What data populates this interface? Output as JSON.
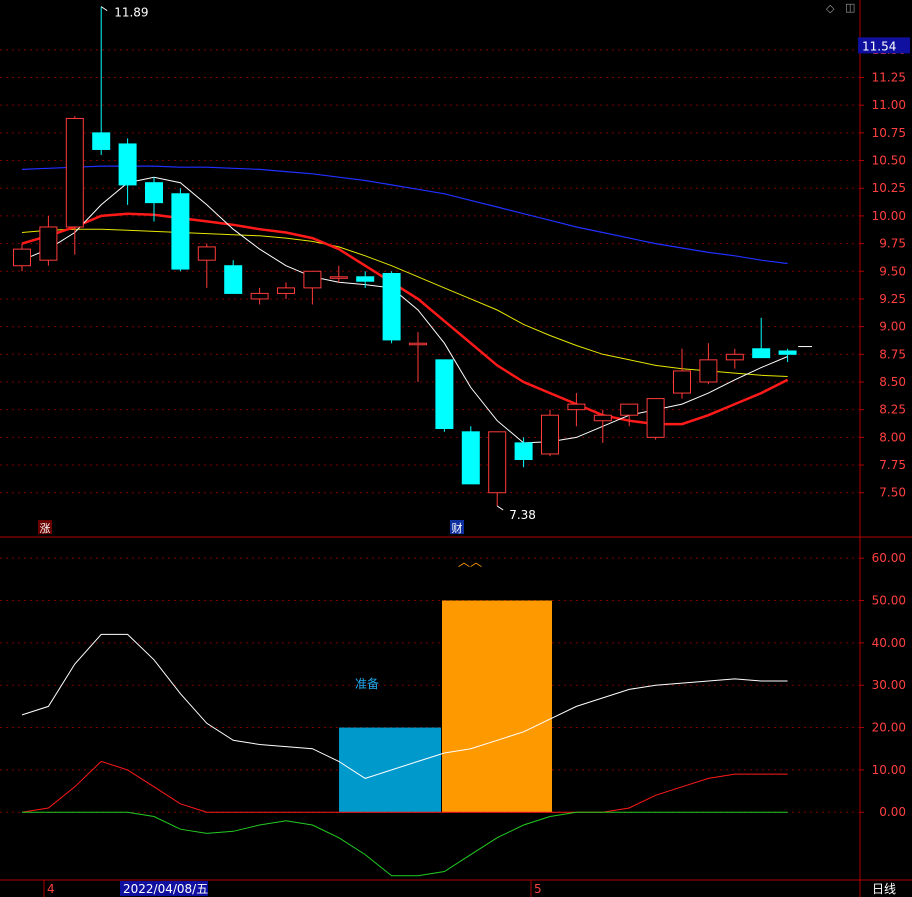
{
  "toolbar": {
    "diamond_icon": "◇",
    "panel_icon": "◫"
  },
  "price_panel": {
    "current_price_badge": "11.54",
    "y_ticks": [
      "11.50",
      "11.25",
      "11.00",
      "10.75",
      "10.50",
      "10.25",
      "10.00",
      "9.75",
      "9.50",
      "9.25",
      "9.00",
      "8.75",
      "8.50",
      "8.25",
      "8.00",
      "7.75",
      "7.50"
    ],
    "high_label": "11.89",
    "low_label": "7.38",
    "marker_left": "涨",
    "marker_fin": "财"
  },
  "indicator_panel": {
    "y_ticks": [
      "60.00",
      "50.00",
      "40.00",
      "30.00",
      "20.00",
      "10.00",
      "0.00"
    ],
    "label_prepare": "准备",
    "peak_glyph": "︿︿"
  },
  "x_axis": {
    "labels": [
      "4",
      "2022/04/08/五",
      "5"
    ],
    "period_label": "日线"
  },
  "colors": {
    "background": "#000000",
    "grid": "#7a0000",
    "frame": "#b00000",
    "up_candle": "#ff3b3b",
    "down_candle": "#00ffff",
    "ma_white": "#ffffff",
    "ma_red": "#ff1a1a",
    "ma_yellow": "#e6e600",
    "ma_blue": "#2030ff",
    "bar_blue": "#0099cc",
    "bar_orange": "#ff9900",
    "line_green": "#22cc22",
    "axis_text": "#ff4040",
    "badge_bg": "#1010a0"
  },
  "chart_data": [
    {
      "type": "candlestick",
      "ylim": [
        7.1,
        11.95
      ],
      "candles": [
        {
          "o": 9.55,
          "h": 9.75,
          "l": 9.5,
          "c": 9.7
        },
        {
          "o": 9.6,
          "h": 10.0,
          "l": 9.55,
          "c": 9.9
        },
        {
          "o": 9.9,
          "h": 10.9,
          "l": 9.65,
          "c": 10.88
        },
        {
          "o": 10.75,
          "h": 11.89,
          "l": 10.55,
          "c": 10.6
        },
        {
          "o": 10.65,
          "h": 10.7,
          "l": 10.1,
          "c": 10.28
        },
        {
          "o": 10.3,
          "h": 10.35,
          "l": 9.95,
          "c": 10.12
        },
        {
          "o": 10.2,
          "h": 10.25,
          "l": 9.5,
          "c": 9.52
        },
        {
          "o": 9.6,
          "h": 9.75,
          "l": 9.35,
          "c": 9.72
        },
        {
          "o": 9.55,
          "h": 9.6,
          "l": 9.3,
          "c": 9.3
        },
        {
          "o": 9.25,
          "h": 9.35,
          "l": 9.2,
          "c": 9.3
        },
        {
          "o": 9.3,
          "h": 9.4,
          "l": 9.25,
          "c": 9.35
        },
        {
          "o": 9.35,
          "h": 9.5,
          "l": 9.2,
          "c": 9.5
        },
        {
          "o": 9.45,
          "h": 9.55,
          "l": 9.4,
          "c": 9.45
        },
        {
          "o": 9.45,
          "h": 9.5,
          "l": 9.35,
          "c": 9.41
        },
        {
          "o": 9.48,
          "h": 9.5,
          "l": 8.85,
          "c": 8.88
        },
        {
          "o": 8.85,
          "h": 8.95,
          "l": 8.5,
          "c": 8.85
        },
        {
          "o": 8.7,
          "h": 8.7,
          "l": 8.05,
          "c": 8.08
        },
        {
          "o": 8.05,
          "h": 8.1,
          "l": 7.58,
          "c": 7.58
        },
        {
          "o": 7.5,
          "h": 8.05,
          "l": 7.38,
          "c": 8.05
        },
        {
          "o": 7.95,
          "h": 8.0,
          "l": 7.73,
          "c": 7.8
        },
        {
          "o": 7.85,
          "h": 8.25,
          "l": 7.83,
          "c": 8.2
        },
        {
          "o": 8.25,
          "h": 8.4,
          "l": 8.1,
          "c": 8.3
        },
        {
          "o": 8.15,
          "h": 8.25,
          "l": 7.95,
          "c": 8.2
        },
        {
          "o": 8.2,
          "h": 8.3,
          "l": 8.1,
          "c": 8.3
        },
        {
          "o": 8.0,
          "h": 8.35,
          "l": 7.98,
          "c": 8.35
        },
        {
          "o": 8.4,
          "h": 8.8,
          "l": 8.35,
          "c": 8.6
        },
        {
          "o": 8.5,
          "h": 8.85,
          "l": 8.48,
          "c": 8.7
        },
        {
          "o": 8.7,
          "h": 8.8,
          "l": 8.62,
          "c": 8.75
        },
        {
          "o": 8.8,
          "h": 9.08,
          "l": 8.72,
          "c": 8.72
        },
        {
          "o": 8.78,
          "h": 8.8,
          "l": 8.68,
          "c": 8.75
        }
      ],
      "ma_white": [
        9.6,
        9.7,
        9.85,
        10.1,
        10.3,
        10.35,
        10.3,
        10.1,
        9.88,
        9.7,
        9.55,
        9.45,
        9.4,
        9.38,
        9.35,
        9.15,
        8.85,
        8.45,
        8.15,
        7.95,
        7.96,
        8.0,
        8.1,
        8.2,
        8.25,
        8.3,
        8.4,
        8.52,
        8.63,
        8.73
      ],
      "ma_red": [
        9.75,
        9.82,
        9.9,
        10.0,
        10.02,
        10.01,
        9.98,
        9.95,
        9.92,
        9.88,
        9.85,
        9.8,
        9.7,
        9.55,
        9.4,
        9.25,
        9.05,
        8.85,
        8.65,
        8.5,
        8.4,
        8.3,
        8.2,
        8.15,
        8.12,
        8.12,
        8.2,
        8.3,
        8.4,
        8.52
      ],
      "ma_yellow": [
        9.85,
        9.87,
        9.88,
        9.88,
        9.87,
        9.86,
        9.85,
        9.84,
        9.83,
        9.82,
        9.8,
        9.77,
        9.72,
        9.64,
        9.55,
        9.45,
        9.35,
        9.25,
        9.15,
        9.02,
        8.92,
        8.83,
        8.75,
        8.7,
        8.65,
        8.62,
        8.6,
        8.58,
        8.56,
        8.55
      ],
      "ma_blue": [
        10.42,
        10.43,
        10.44,
        10.45,
        10.45,
        10.45,
        10.44,
        10.44,
        10.43,
        10.42,
        10.4,
        10.38,
        10.35,
        10.32,
        10.28,
        10.24,
        10.2,
        10.14,
        10.08,
        10.02,
        9.96,
        9.9,
        9.85,
        9.8,
        9.75,
        9.71,
        9.67,
        9.64,
        9.6,
        9.57
      ]
    },
    {
      "type": "bar",
      "ylim": [
        -16,
        65
      ],
      "line_white": [
        23,
        25,
        35,
        42,
        42,
        36,
        28,
        21,
        17,
        16,
        15.5,
        15,
        12,
        8,
        10,
        12,
        14,
        15,
        17,
        19,
        22,
        25,
        27,
        29,
        30,
        30.5,
        31,
        31.5,
        31,
        31
      ],
      "line_red": [
        0,
        1,
        6,
        12,
        10,
        6,
        2,
        0,
        0,
        0,
        0,
        0,
        0,
        0,
        0,
        0,
        0,
        0,
        0,
        0,
        0,
        0,
        0,
        1,
        4,
        6,
        8,
        9,
        9,
        9
      ],
      "line_green": [
        0,
        0,
        0,
        0,
        0,
        -1,
        -4,
        -5,
        -4.5,
        -3,
        -2,
        -3,
        -6,
        -10,
        -15,
        -15,
        -14,
        -10,
        -6,
        -3,
        -1,
        0,
        0,
        0,
        0,
        0,
        0,
        0,
        0,
        0
      ],
      "bars": [
        {
          "value": 20,
          "label": "准备"
        },
        {
          "value": 50,
          "label": ""
        }
      ]
    }
  ]
}
